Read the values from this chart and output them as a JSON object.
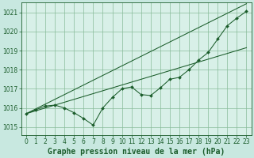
{
  "title": "Graphe pression niveau de la mer (hPa)",
  "bg_color": "#c8e8e0",
  "plot_bg_color": "#d8f0e8",
  "grid_color": "#88bb99",
  "line_color": "#1a5c2a",
  "marker_color": "#1a5c2a",
  "x_values": [
    0,
    1,
    2,
    3,
    4,
    5,
    6,
    7,
    8,
    9,
    10,
    11,
    12,
    13,
    14,
    15,
    16,
    17,
    18,
    19,
    20,
    21,
    22,
    23
  ],
  "y_main": [
    1015.7,
    1015.9,
    1016.1,
    1016.15,
    1016.0,
    1015.75,
    1015.45,
    1015.1,
    1016.0,
    1016.55,
    1017.0,
    1017.1,
    1016.7,
    1016.65,
    1017.05,
    1017.5,
    1017.6,
    1018.0,
    1018.5,
    1018.9,
    1019.6,
    1020.3,
    1020.7,
    1021.05
  ],
  "y_line1": [
    1015.7,
    1015.95,
    1016.2,
    1016.45,
    1016.7,
    1016.95,
    1017.2,
    1017.45,
    1017.7,
    1017.95,
    1018.2,
    1018.45,
    1018.7,
    1018.95,
    1019.2,
    1019.45,
    1019.7,
    1019.95,
    1020.2,
    1020.45,
    1020.7,
    1020.95,
    1021.2,
    1021.45
  ],
  "y_line2": [
    1015.7,
    1015.85,
    1016.0,
    1016.15,
    1016.3,
    1016.45,
    1016.6,
    1016.75,
    1016.9,
    1017.05,
    1017.2,
    1017.35,
    1017.5,
    1017.65,
    1017.8,
    1017.95,
    1018.1,
    1018.25,
    1018.4,
    1018.55,
    1018.7,
    1018.85,
    1019.0,
    1019.15
  ],
  "ylim": [
    1014.6,
    1021.5
  ],
  "xlim": [
    -0.5,
    23.5
  ],
  "yticks": [
    1015,
    1016,
    1017,
    1018,
    1019,
    1020,
    1021
  ],
  "xticks": [
    0,
    1,
    2,
    3,
    4,
    5,
    6,
    7,
    8,
    9,
    10,
    11,
    12,
    13,
    14,
    15,
    16,
    17,
    18,
    19,
    20,
    21,
    22,
    23
  ],
  "title_fontsize": 7,
  "tick_fontsize": 5.5
}
